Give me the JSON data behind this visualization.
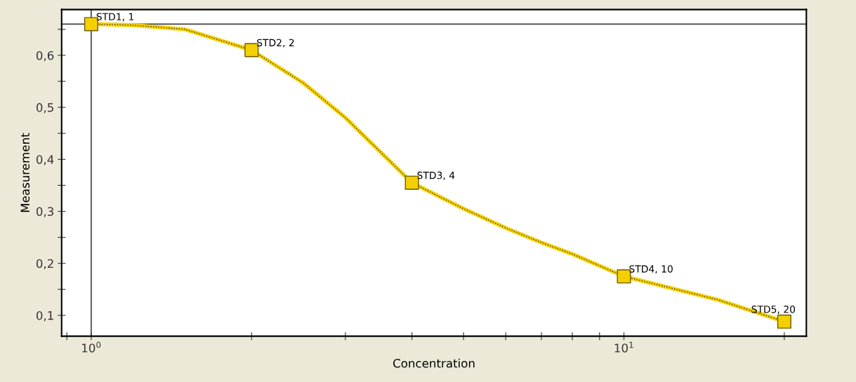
{
  "chart_data": {
    "type": "line",
    "xlabel": "Concentration",
    "ylabel": "Measurement",
    "log": "x",
    "xlim": [
      0.88,
      22
    ],
    "ylim": [
      0.06,
      0.688
    ],
    "xticks": [
      {
        "value": 0.9,
        "label": null
      },
      {
        "value": 1,
        "label": "10$^{0}$"
      },
      {
        "value": 2,
        "label": null
      },
      {
        "value": 3,
        "label": null
      },
      {
        "value": 4,
        "label": null
      },
      {
        "value": 5,
        "label": null
      },
      {
        "value": 6,
        "label": null
      },
      {
        "value": 7,
        "label": null
      },
      {
        "value": 8,
        "label": null
      },
      {
        "value": 9,
        "label": null
      },
      {
        "value": 10,
        "label": "10$^{1}$"
      },
      {
        "value": 20,
        "label": null
      }
    ],
    "yticks": [
      {
        "value": 0.1,
        "label": "0,1"
      },
      {
        "value": 0.15,
        "label": null
      },
      {
        "value": 0.2,
        "label": "0,2"
      },
      {
        "value": 0.25,
        "label": null
      },
      {
        "value": 0.3,
        "label": "0,3"
      },
      {
        "value": 0.35,
        "label": null
      },
      {
        "value": 0.4,
        "label": "0,4"
      },
      {
        "value": 0.45,
        "label": null
      },
      {
        "value": 0.5,
        "label": "0,5"
      },
      {
        "value": 0.55,
        "label": null
      },
      {
        "value": 0.6,
        "label": "0,6"
      },
      {
        "value": 0.65,
        "label": null
      }
    ],
    "grid": false,
    "legend": false,
    "ref_lines": [
      {
        "axis": "y",
        "value": 0.66,
        "color": "#404040"
      },
      {
        "axis": "x",
        "value": 1,
        "color": "#404040"
      }
    ],
    "series": [
      {
        "color": "#f5d000",
        "marker": "none",
        "x": [
          1,
          1.2,
          1.5,
          2,
          2.5,
          3,
          4,
          5,
          6,
          7,
          8,
          10,
          15,
          20
        ],
        "values": [
          0.66,
          0.658,
          0.65,
          0.61,
          0.547,
          0.48,
          0.355,
          0.305,
          0.268,
          0.24,
          0.218,
          0.175,
          0.13,
          0.088
        ]
      },
      {
        "type": "scatter",
        "color": "#f5d000",
        "marker": "square",
        "x": [
          1,
          2,
          4,
          10,
          20
        ],
        "values": [
          0.66,
          0.61,
          0.355,
          0.175,
          0.088
        ]
      }
    ],
    "annotations": [
      {
        "text": "STD1, 1",
        "x": 1,
        "y": 0.66
      },
      {
        "text": "STD2, 2",
        "x": 2,
        "y": 0.61
      },
      {
        "text": "STD3, 4",
        "x": 4,
        "y": 0.355
      },
      {
        "text": "STD4, 10",
        "x": 10,
        "y": 0.175
      },
      {
        "text": "STD5, 20",
        "x": 20,
        "y": 0.088
      }
    ]
  }
}
